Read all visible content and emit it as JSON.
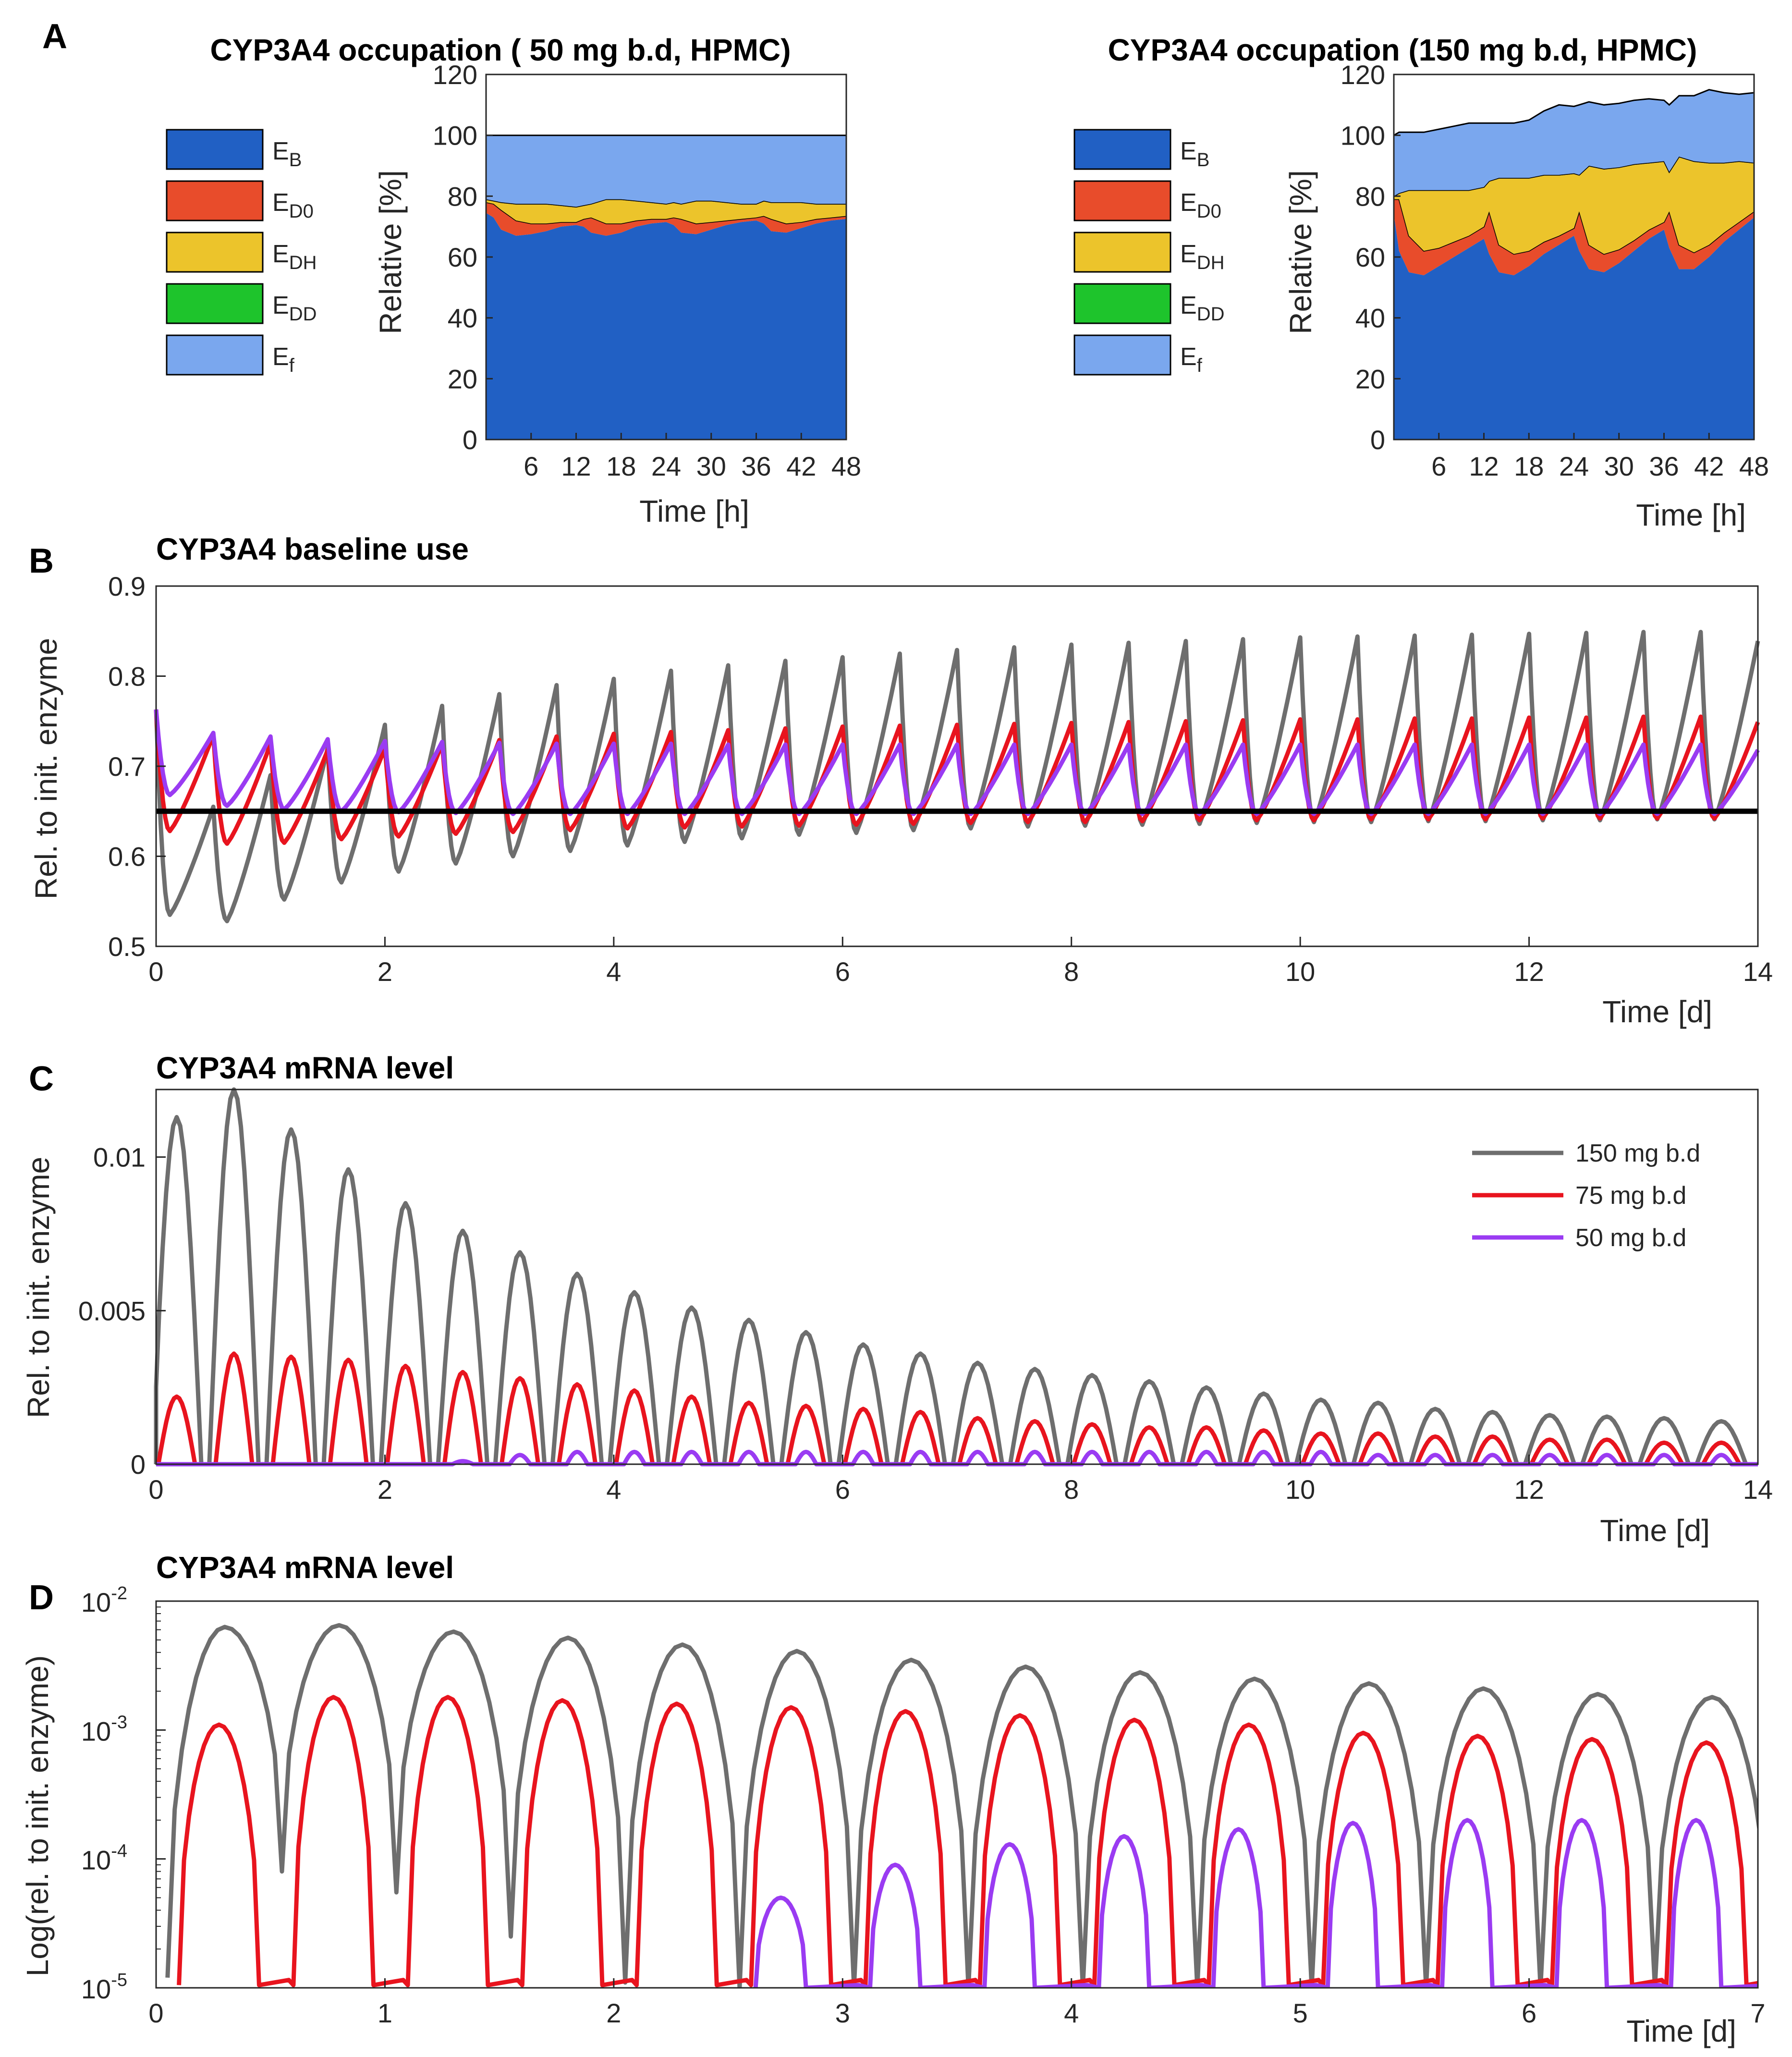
{
  "figure": {
    "panels": {
      "A": "A",
      "B": "B",
      "C": "C",
      "D": "D"
    }
  },
  "chart_data": [
    {
      "id": "A1",
      "type": "area",
      "title": "CYP3A4 occupation ( 50 mg b.d, HPMC)",
      "xlabel": "Time [h]",
      "ylabel": "Relative [%]",
      "xlim": [
        0,
        48
      ],
      "ylim": [
        0,
        120
      ],
      "xticks": [
        6,
        12,
        18,
        24,
        30,
        36,
        42,
        48
      ],
      "yticks": [
        0,
        20,
        40,
        60,
        80,
        100,
        120
      ],
      "legend": [
        {
          "label": "E",
          "sub": "B",
          "color": "#2160c4"
        },
        {
          "label": "E",
          "sub": "D0",
          "color": "#e84c2b"
        },
        {
          "label": "E",
          "sub": "DH",
          "color": "#ecc42b"
        },
        {
          "label": "E",
          "sub": "DD",
          "color": "#1ec42c"
        },
        {
          "label": "E",
          "sub": "f",
          "color": "#7aa7ee"
        }
      ],
      "x": [
        0,
        1,
        2,
        4,
        6,
        8,
        10,
        12,
        13,
        14,
        16,
        18,
        20,
        22,
        24,
        25,
        26,
        28,
        30,
        32,
        34,
        36,
        37,
        38,
        40,
        42,
        44,
        46,
        48
      ],
      "series": [
        {
          "name": "E_B",
          "color": "#2160c4",
          "values": [
            74.5,
            73,
            69,
            67,
            67.5,
            68.5,
            70,
            70.5,
            70,
            68,
            67,
            68,
            70,
            71,
            71.5,
            70.5,
            68,
            67.5,
            69,
            70.5,
            71.5,
            72,
            71,
            68.5,
            68,
            69.5,
            71,
            72,
            72.5
          ]
        },
        {
          "name": "E_D0",
          "color": "#e84c2b",
          "values": [
            3.5,
            4.5,
            6.5,
            5,
            3.5,
            2.5,
            1.5,
            1,
            2.5,
            5,
            4,
            3,
            2,
            1.5,
            1,
            2.5,
            4.5,
            3.5,
            2.5,
            1.5,
            1,
            1,
            2.5,
            4,
            3,
            2,
            1.5,
            1,
            1
          ]
        },
        {
          "name": "E_DH",
          "color": "#ecc42b",
          "values": [
            1,
            1,
            2.5,
            5.5,
            6.5,
            6.5,
            5.5,
            5,
            4.5,
            4.5,
            8,
            8,
            6.5,
            5.5,
            5,
            5,
            5,
            7.5,
            7,
            6,
            5,
            4.5,
            5,
            5.5,
            7,
            6.5,
            5,
            4.5,
            4
          ]
        },
        {
          "name": "E_DD",
          "color": "#1ec42c",
          "values": [
            0,
            0,
            0,
            0,
            0,
            0,
            0,
            0,
            0,
            0,
            0,
            0,
            0,
            0,
            0,
            0,
            0,
            0,
            0,
            0,
            0,
            0,
            0,
            0,
            0,
            0,
            0,
            0,
            0
          ]
        },
        {
          "name": "E_f",
          "color": "#7aa7ee",
          "values": [
            21,
            21.5,
            22,
            22.5,
            22.5,
            22.5,
            23,
            23.5,
            23,
            22.5,
            21,
            21,
            21.5,
            22,
            22.5,
            22,
            22.5,
            21.5,
            21.5,
            22,
            22.5,
            22.5,
            21.5,
            22,
            22,
            22,
            22.5,
            22.5,
            22.5
          ]
        }
      ]
    },
    {
      "id": "A2",
      "type": "area",
      "title": "CYP3A4 occupation (150 mg b.d, HPMC)",
      "xlabel": "Time [h]",
      "ylabel": "Relative [%]",
      "xlim": [
        0,
        48
      ],
      "ylim": [
        0,
        120
      ],
      "xticks": [
        6,
        12,
        18,
        24,
        30,
        36,
        42,
        48
      ],
      "yticks": [
        0,
        20,
        40,
        60,
        80,
        100,
        120
      ],
      "legend": [
        {
          "label": "E",
          "sub": "B",
          "color": "#2160c4"
        },
        {
          "label": "E",
          "sub": "D0",
          "color": "#e84c2b"
        },
        {
          "label": "E",
          "sub": "DH",
          "color": "#ecc42b"
        },
        {
          "label": "E",
          "sub": "DD",
          "color": "#1ec42c"
        },
        {
          "label": "E",
          "sub": "f",
          "color": "#7aa7ee"
        }
      ],
      "x": [
        0,
        0.7,
        2,
        4,
        6,
        8,
        10,
        12,
        12.7,
        14,
        16,
        18,
        20,
        22,
        24,
        24.7,
        26,
        28,
        30,
        32,
        34,
        36,
        36.7,
        38,
        40,
        42,
        44,
        46,
        48
      ],
      "series": [
        {
          "name": "E_B",
          "color": "#2160c4",
          "values": [
            74,
            62,
            55,
            54,
            57,
            60,
            63,
            66,
            61,
            55,
            54,
            57,
            61,
            64,
            67,
            62,
            56,
            55,
            58,
            62,
            66,
            69,
            63,
            56,
            56,
            60,
            65,
            69,
            73
          ]
        },
        {
          "name": "E_D0",
          "color": "#e84c2b",
          "values": [
            5,
            17,
            12,
            8,
            6,
            5,
            4,
            4,
            14,
            9,
            7,
            5,
            4,
            3,
            2.5,
            13,
            8,
            6,
            4.5,
            3.5,
            3,
            2.5,
            12,
            8,
            5.5,
            4,
            3,
            2.5,
            2
          ]
        },
        {
          "name": "E_DH",
          "color": "#ecc42b",
          "values": [
            1,
            2,
            15,
            20,
            19,
            17,
            15,
            13,
            10,
            22,
            25,
            24,
            22,
            20,
            18,
            12,
            26,
            28,
            27,
            25,
            22,
            20,
            13,
            29,
            30,
            27,
            23,
            20,
            16
          ]
        },
        {
          "name": "E_DD",
          "color": "#1ec42c",
          "values": [
            0,
            0,
            0,
            0,
            0,
            0,
            0,
            0,
            0,
            0,
            0,
            0,
            0,
            0,
            0,
            0,
            0,
            0,
            0,
            0,
            0,
            0,
            0,
            0,
            0,
            0,
            0,
            0,
            0
          ]
        },
        {
          "name": "E_f",
          "color": "#7aa7ee",
          "values": [
            20,
            20,
            19,
            19,
            20,
            21,
            22,
            21,
            19,
            18,
            18,
            19,
            21,
            23,
            22,
            23,
            21,
            21,
            21,
            21,
            21,
            20,
            22,
            20,
            21.5,
            24,
            23,
            22,
            23
          ]
        }
      ]
    },
    {
      "id": "B",
      "type": "line",
      "title": "CYP3A4 baseline use",
      "xlabel": "Time [d]",
      "ylabel": "Rel. to init. enzyme",
      "xlim": [
        0,
        14
      ],
      "ylim": [
        0.5,
        0.9
      ],
      "xticks": [
        0,
        2,
        4,
        6,
        8,
        10,
        12,
        14
      ],
      "yticks": [
        0.5,
        0.6,
        0.7,
        0.8,
        0.9
      ],
      "reference_line": {
        "y": 0.65,
        "color": "#000000"
      },
      "series": [
        {
          "name": "150 mg b.d",
          "color": "#6e6e6e",
          "cycle_peaks": [
            0.763,
            0.655,
            0.69,
            0.72,
            0.746,
            0.767,
            0.78,
            0.79,
            0.797,
            0.806,
            0.812,
            0.817,
            0.821,
            0.825,
            0.829,
            0.832,
            0.835,
            0.837,
            0.839,
            0.841,
            0.843,
            0.844,
            0.845,
            0.846,
            0.847,
            0.848,
            0.849,
            0.849
          ],
          "cycle_troughs": [
            0.535,
            0.528,
            0.552,
            0.571,
            0.583,
            0.592,
            0.6,
            0.606,
            0.612,
            0.616,
            0.62,
            0.624,
            0.626,
            0.629,
            0.631,
            0.633,
            0.634,
            0.635,
            0.636,
            0.637,
            0.638,
            0.638,
            0.639,
            0.639,
            0.64,
            0.64,
            0.641,
            0.641
          ],
          "final": 0.839
        },
        {
          "name": "75 mg b.d",
          "color": "#e8141e",
          "cycle_peaks": [
            0.763,
            0.735,
            0.725,
            0.718,
            0.72,
            0.725,
            0.729,
            0.733,
            0.736,
            0.738,
            0.74,
            0.742,
            0.744,
            0.745,
            0.746,
            0.747,
            0.748,
            0.749,
            0.75,
            0.751,
            0.752,
            0.752,
            0.753,
            0.753,
            0.754,
            0.754,
            0.755,
            0.755
          ],
          "cycle_troughs": [
            0.628,
            0.614,
            0.615,
            0.619,
            0.622,
            0.625,
            0.627,
            0.629,
            0.631,
            0.632,
            0.633,
            0.634,
            0.635,
            0.636,
            0.637,
            0.638,
            0.638,
            0.639,
            0.64,
            0.64,
            0.64,
            0.641,
            0.641,
            0.641,
            0.642,
            0.642,
            0.642,
            0.642
          ],
          "final": 0.749
        },
        {
          "name": "50 mg b.d",
          "color": "#9a3bf2",
          "cycle_peaks": [
            0.763,
            0.737,
            0.733,
            0.73,
            0.728,
            0.727,
            0.726,
            0.725,
            0.725,
            0.725,
            0.724,
            0.724,
            0.724,
            0.724,
            0.724,
            0.724,
            0.724,
            0.724,
            0.724,
            0.724,
            0.724,
            0.724,
            0.724,
            0.724,
            0.724,
            0.724,
            0.724,
            0.724
          ],
          "cycle_troughs": [
            0.668,
            0.656,
            0.652,
            0.65,
            0.649,
            0.648,
            0.647,
            0.647,
            0.647,
            0.647,
            0.647,
            0.647,
            0.647,
            0.647,
            0.647,
            0.647,
            0.647,
            0.647,
            0.647,
            0.647,
            0.647,
            0.647,
            0.647,
            0.647,
            0.647,
            0.647,
            0.647,
            0.647
          ],
          "final": 0.718
        }
      ]
    },
    {
      "id": "C",
      "type": "line",
      "title": "CYP3A4 mRNA level",
      "xlabel": "Time [d]",
      "ylabel": "Rel. to init. enzyme",
      "xlim": [
        0,
        14
      ],
      "ylim": [
        0,
        0.0122
      ],
      "xticks": [
        0,
        2,
        4,
        6,
        8,
        10,
        12,
        14
      ],
      "yticks": [
        0,
        0.005,
        0.01
      ],
      "ytick_labels": [
        "0",
        "0.005",
        "0.01"
      ],
      "legend_position": "top-right",
      "series": [
        {
          "name": "150 mg b.d",
          "color": "#6e6e6e",
          "peaks": [
            0.0113,
            0.0122,
            0.0109,
            0.0096,
            0.0085,
            0.0076,
            0.0069,
            0.0062,
            0.0056,
            0.0051,
            0.0047,
            0.0043,
            0.0039,
            0.0036,
            0.0033,
            0.0031,
            0.0029,
            0.0027,
            0.0025,
            0.0023,
            0.0021,
            0.002,
            0.0018,
            0.0017,
            0.0016,
            0.00155,
            0.0015,
            0.0014
          ]
        },
        {
          "name": "75 mg b.d",
          "color": "#e8141e",
          "peaks": [
            0.0022,
            0.0036,
            0.0035,
            0.0034,
            0.0032,
            0.003,
            0.0028,
            0.0026,
            0.0024,
            0.0022,
            0.002,
            0.0019,
            0.0018,
            0.0017,
            0.0015,
            0.0014,
            0.0013,
            0.0012,
            0.0012,
            0.0011,
            0.001,
            0.001,
            0.0009,
            0.0009,
            0.0008,
            0.0008,
            0.0007,
            0.0007
          ]
        },
        {
          "name": "50 mg b.d",
          "color": "#9a3bf2",
          "peaks": [
            0,
            0,
            0,
            0,
            0,
            0.0001,
            0.0003,
            0.0004,
            0.0004,
            0.0004,
            0.0004,
            0.0004,
            0.0004,
            0.0004,
            0.0004,
            0.0004,
            0.0004,
            0.0004,
            0.0004,
            0.0004,
            0.0004,
            0.0003,
            0.0003,
            0.0003,
            0.0003,
            0.0003,
            0.0003,
            0.0003
          ]
        }
      ]
    },
    {
      "id": "D",
      "type": "line",
      "scale": "log",
      "title": "CYP3A4 mRNA level",
      "xlabel": "Time [d]",
      "ylabel": "Log(rel. to init. enzyme)",
      "xlim": [
        0,
        7
      ],
      "ylim": [
        1e-05,
        0.01
      ],
      "xticks": [
        0,
        1,
        2,
        3,
        4,
        5,
        6,
        7
      ],
      "ytick_labels": [
        {
          "base": "10",
          "exp": "-5"
        },
        {
          "base": "10",
          "exp": "-4"
        },
        {
          "base": "10",
          "exp": "-3"
        },
        {
          "base": "10",
          "exp": "-2"
        }
      ],
      "series": [
        {
          "name": "150 mg b.d",
          "color": "#6e6e6e",
          "peaks": [
            0.0063,
            0.0065,
            0.0058,
            0.0052,
            0.0046,
            0.0041,
            0.0035,
            0.0031,
            0.0028,
            0.0025,
            0.0023,
            0.0021,
            0.0019,
            0.0018
          ],
          "troughs": [
            1.2e-05,
            8e-05,
            5.5e-05,
            2.5e-05,
            1.1e-05,
            1e-05,
            1e-05,
            1e-05,
            1e-05,
            1e-05,
            1e-05,
            1e-05,
            1e-05,
            1e-05
          ]
        },
        {
          "name": "75 mg b.d",
          "color": "#e8141e",
          "peaks": [
            0.0011,
            0.0018,
            0.0018,
            0.0017,
            0.0016,
            0.0015,
            0.0014,
            0.0013,
            0.0012,
            0.0011,
            0.00095,
            0.0009,
            0.00085,
            0.0008
          ]
        },
        {
          "name": "50 mg b.d",
          "color": "#9a3bf2",
          "start_day": 2.62,
          "peaks": [
            5e-05,
            9e-05,
            0.00013,
            0.00015,
            0.00017,
            0.00019,
            0.0002,
            0.0002,
            0.0002
          ]
        }
      ]
    }
  ]
}
